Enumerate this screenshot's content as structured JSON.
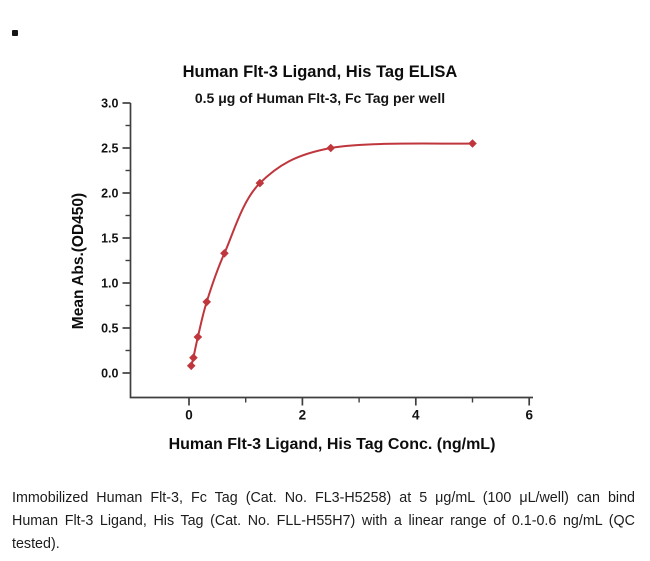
{
  "icons": {
    "bullet": "small-black-square"
  },
  "chart_data": {
    "type": "scatter",
    "title": "Human Flt-3 Ligand, His Tag ELISA",
    "subtitle": "0.5 μg of Human Flt-3, Fc Tag per well",
    "xlabel": "Human Flt-3 Ligand, His Tag Conc. (ng/mL)",
    "ylabel": "Mean Abs.(OD450)",
    "x": [
      0.0391,
      0.0781,
      0.1563,
      0.3125,
      0.625,
      1.25,
      2.5,
      5
    ],
    "y": [
      0.08,
      0.17,
      0.4,
      0.79,
      1.33,
      2.11,
      2.5,
      2.55
    ],
    "fit": "sigmoidal 4PL dose-response curve through the points",
    "xlim": [
      -1.05,
      6.08
    ],
    "ylim": [
      0,
      3.27
    ],
    "x_ticks": [
      0,
      2,
      4,
      6
    ],
    "x_minor_ticks": [
      1,
      3,
      5
    ],
    "y_ticks": [
      0,
      0.5,
      1,
      1.5,
      2,
      2.5,
      3
    ],
    "y_minor_step": 0.25,
    "grid": false,
    "legend": false,
    "marker": "diamond",
    "line_color": "#bf363d",
    "axis_color": "#3f3f3f",
    "tick_text_color": "#121212"
  },
  "caption": {
    "lines": [
      "Immobilized Human Flt-3, Fc Tag (Cat. No. FL3-H5258) at 5 μg/mL (100 μL/well) can bind",
      "Human Flt-3 Ligand, His Tag (Cat. No. FLL-H55H7) with a linear range of 0.1-0.6 ng/mL (QC",
      "tested)."
    ]
  }
}
